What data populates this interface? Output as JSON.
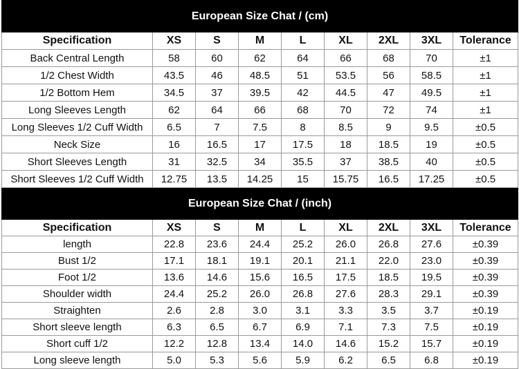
{
  "tables": [
    {
      "title": "European Size Chat  /  (cm)",
      "header": [
        "Specification",
        "XS",
        "S",
        "M",
        "L",
        "XL",
        "2XL",
        "3XL",
        "Tolerance"
      ],
      "rows": [
        [
          "Back Central Length",
          "58",
          "60",
          "62",
          "64",
          "66",
          "68",
          "70",
          "±1"
        ],
        [
          "1/2 Chest Width",
          "43.5",
          "46",
          "48.5",
          "51",
          "53.5",
          "56",
          "58.5",
          "±1"
        ],
        [
          "1/2 Bottom Hem",
          "34.5",
          "37",
          "39.5",
          "42",
          "44.5",
          "47",
          "49.5",
          "±1"
        ],
        [
          "Long Sleeves Length",
          "62",
          "64",
          "66",
          "68",
          "70",
          "72",
          "74",
          "±1"
        ],
        [
          "Long Sleeves 1/2 Cuff Width",
          "6.5",
          "7",
          "7.5",
          "8",
          "8.5",
          "9",
          "9.5",
          "±0.5"
        ],
        [
          "Neck Size",
          "16",
          "16.5",
          "17",
          "17.5",
          "18",
          "18.5",
          "19",
          "±0.5"
        ],
        [
          "Short Sleeves Length",
          "31",
          "32.5",
          "34",
          "35.5",
          "37",
          "38.5",
          "40",
          "±0.5"
        ],
        [
          "Short Sleeves 1/2 Cuff Width",
          "12.75",
          "13.5",
          "14.25",
          "15",
          "15.75",
          "16.5",
          "17.25",
          "±0.5"
        ]
      ]
    },
    {
      "title": "European Size Chat  /  (inch)",
      "header": [
        "Specification",
        "XS",
        "S",
        "M",
        "L",
        "XL",
        "2XL",
        "3XL",
        "Tolerance"
      ],
      "rows": [
        [
          "length",
          "22.8",
          "23.6",
          "24.4",
          "25.2",
          "26.0",
          "26.8",
          "27.6",
          "±0.39"
        ],
        [
          "Bust 1/2",
          "17.1",
          "18.1",
          "19.1",
          "20.1",
          "21.1",
          "22.0",
          "23.0",
          "±0.39"
        ],
        [
          "Foot  1/2",
          "13.6",
          "14.6",
          "15.6",
          "16.5",
          "17.5",
          "18.5",
          "19.5",
          "±0.39"
        ],
        [
          "Shoulder width",
          "24.4",
          "25.2",
          "26.0",
          "26.8",
          "27.6",
          "28.3",
          "29.1",
          "±0.39"
        ],
        [
          "Straighten",
          "2.6",
          "2.8",
          "3.0",
          "3.1",
          "3.3",
          "3.5",
          "3.7",
          "±0.19"
        ],
        [
          "Short sleeve length",
          "6.3",
          "6.5",
          "6.7",
          "6.9",
          "7.1",
          "7.3",
          "7.5",
          "±0.19"
        ],
        [
          "Short cuff 1/2",
          "12.2",
          "12.8",
          "13.4",
          "14.0",
          "14.6",
          "15.2",
          "15.7",
          "±0.19"
        ],
        [
          "Long sleeve length",
          "5.0",
          "5.3",
          "5.6",
          "5.9",
          "6.2",
          "6.5",
          "6.8",
          "±0.19"
        ]
      ]
    }
  ]
}
